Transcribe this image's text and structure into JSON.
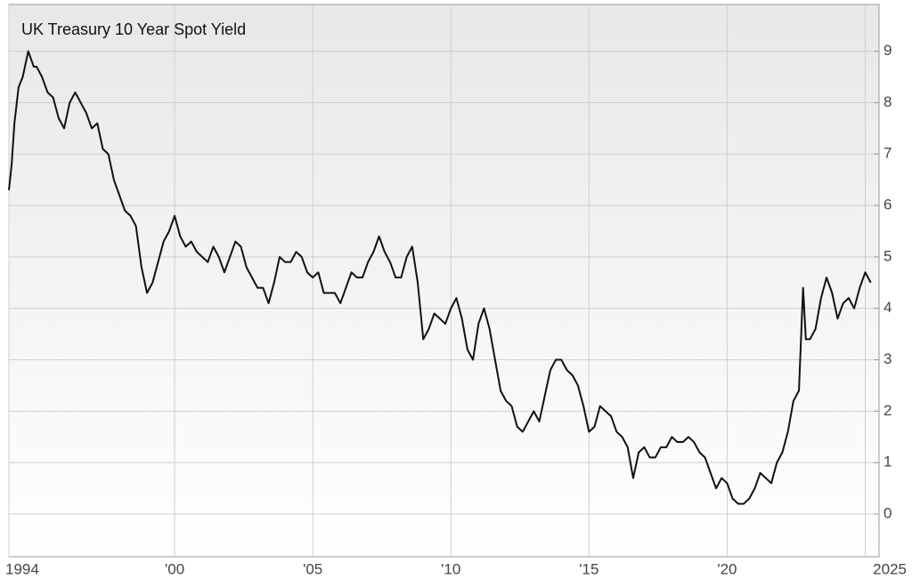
{
  "chart_data": {
    "type": "line",
    "title": "UK Treasury 10 Year Spot Yield",
    "x": [
      1994.0,
      1994.1,
      1994.2,
      1994.35,
      1994.5,
      1994.7,
      1994.9,
      1995.0,
      1995.2,
      1995.4,
      1995.6,
      1995.8,
      1996.0,
      1996.2,
      1996.4,
      1996.6,
      1996.8,
      1997.0,
      1997.2,
      1997.4,
      1997.6,
      1997.8,
      1998.0,
      1998.2,
      1998.4,
      1998.6,
      1998.8,
      1999.0,
      1999.2,
      1999.4,
      1999.6,
      1999.8,
      2000.0,
      2000.2,
      2000.4,
      2000.6,
      2000.8,
      2001.0,
      2001.2,
      2001.4,
      2001.6,
      2001.8,
      2002.0,
      2002.2,
      2002.4,
      2002.6,
      2002.8,
      2003.0,
      2003.2,
      2003.4,
      2003.6,
      2003.8,
      2004.0,
      2004.2,
      2004.4,
      2004.6,
      2004.8,
      2005.0,
      2005.2,
      2005.4,
      2005.6,
      2005.8,
      2006.0,
      2006.2,
      2006.4,
      2006.6,
      2006.8,
      2007.0,
      2007.2,
      2007.4,
      2007.6,
      2007.8,
      2008.0,
      2008.2,
      2008.4,
      2008.6,
      2008.8,
      2009.0,
      2009.2,
      2009.4,
      2009.6,
      2009.8,
      2010.0,
      2010.2,
      2010.4,
      2010.6,
      2010.8,
      2011.0,
      2011.2,
      2011.4,
      2011.6,
      2011.8,
      2012.0,
      2012.2,
      2012.4,
      2012.6,
      2012.8,
      2013.0,
      2013.2,
      2013.4,
      2013.6,
      2013.8,
      2014.0,
      2014.2,
      2014.4,
      2014.6,
      2014.8,
      2015.0,
      2015.2,
      2015.4,
      2015.6,
      2015.8,
      2016.0,
      2016.2,
      2016.4,
      2016.6,
      2016.8,
      2017.0,
      2017.2,
      2017.4,
      2017.6,
      2017.8,
      2018.0,
      2018.2,
      2018.4,
      2018.6,
      2018.8,
      2019.0,
      2019.2,
      2019.4,
      2019.6,
      2019.8,
      2020.0,
      2020.2,
      2020.4,
      2020.6,
      2020.8,
      2021.0,
      2021.2,
      2021.4,
      2021.6,
      2021.8,
      2022.0,
      2022.2,
      2022.4,
      2022.6,
      2022.75,
      2022.85,
      2023.0,
      2023.2,
      2023.4,
      2023.6,
      2023.8,
      2024.0,
      2024.2,
      2024.4,
      2024.6,
      2024.8,
      2025.0,
      2025.2
    ],
    "values": [
      6.3,
      6.8,
      7.6,
      8.3,
      8.5,
      9.0,
      8.7,
      8.7,
      8.5,
      8.2,
      8.1,
      7.7,
      7.5,
      8.0,
      8.2,
      8.0,
      7.8,
      7.5,
      7.6,
      7.1,
      7.0,
      6.5,
      6.2,
      5.9,
      5.8,
      5.6,
      4.8,
      4.3,
      4.5,
      4.9,
      5.3,
      5.5,
      5.8,
      5.4,
      5.2,
      5.3,
      5.1,
      5.0,
      4.9,
      5.2,
      5.0,
      4.7,
      5.0,
      5.3,
      5.2,
      4.8,
      4.6,
      4.4,
      4.4,
      4.1,
      4.5,
      5.0,
      4.9,
      4.9,
      5.1,
      5.0,
      4.7,
      4.6,
      4.7,
      4.3,
      4.3,
      4.3,
      4.1,
      4.4,
      4.7,
      4.6,
      4.6,
      4.9,
      5.1,
      5.4,
      5.1,
      4.9,
      4.6,
      4.6,
      5.0,
      5.2,
      4.5,
      3.4,
      3.6,
      3.9,
      3.8,
      3.7,
      4.0,
      4.2,
      3.8,
      3.2,
      3.0,
      3.7,
      4.0,
      3.6,
      3.0,
      2.4,
      2.2,
      2.1,
      1.7,
      1.6,
      1.8,
      2.0,
      1.8,
      2.3,
      2.8,
      3.0,
      3.0,
      2.8,
      2.7,
      2.5,
      2.1,
      1.6,
      1.7,
      2.1,
      2.0,
      1.9,
      1.6,
      1.5,
      1.3,
      0.7,
      1.2,
      1.3,
      1.1,
      1.1,
      1.3,
      1.3,
      1.5,
      1.4,
      1.4,
      1.5,
      1.4,
      1.2,
      1.1,
      0.8,
      0.5,
      0.7,
      0.6,
      0.3,
      0.2,
      0.2,
      0.3,
      0.5,
      0.8,
      0.7,
      0.6,
      1.0,
      1.2,
      1.6,
      2.2,
      2.4,
      4.4,
      3.4,
      3.4,
      3.6,
      4.2,
      4.6,
      4.3,
      3.8,
      4.1,
      4.2,
      4.0,
      4.4,
      4.7,
      4.5
    ],
    "color": "#111111",
    "xlim": [
      1994,
      2025.5
    ],
    "xticks": [
      1994,
      {
        "value": 2000,
        "label": "'00"
      },
      {
        "value": 2005,
        "label": "'05"
      },
      {
        "value": 2010,
        "label": "'10"
      },
      {
        "value": 2015,
        "label": "'15"
      },
      {
        "value": 2020,
        "label": "'20"
      },
      2025
    ],
    "ylim": [
      -0.83,
      9.91
    ],
    "yticks": [
      0,
      1,
      2,
      3,
      4,
      5,
      6,
      7,
      8,
      9
    ],
    "grid": true
  }
}
